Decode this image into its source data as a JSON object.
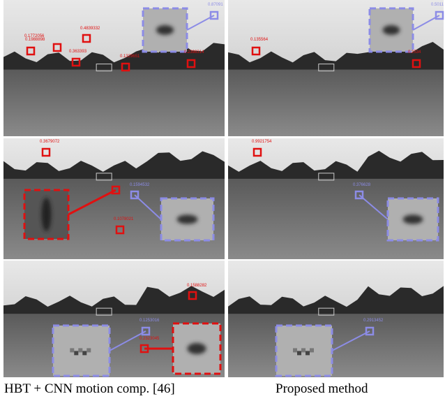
{
  "panels": [
    {
      "labels": [
        "0.1988898",
        "0.1772056",
        "0.4839332",
        "0.363393",
        "0.1329651",
        "0.2398314",
        "0.87091"
      ]
    },
    {
      "labels": [
        "0.135564",
        "0.2534",
        "0.5011"
      ]
    },
    {
      "labels": [
        "0.3679072",
        "0.1594532",
        "0.1078021"
      ]
    },
    {
      "labels": [
        "0.9921754",
        "0.376628"
      ]
    },
    {
      "labels": [
        "0.1588282",
        "0.1253016",
        "0.2323045"
      ]
    },
    {
      "labels": [
        "0.2913452"
      ]
    }
  ],
  "captions": [
    "HBT + CNN motion comp. [46]",
    "Proposed method"
  ]
}
